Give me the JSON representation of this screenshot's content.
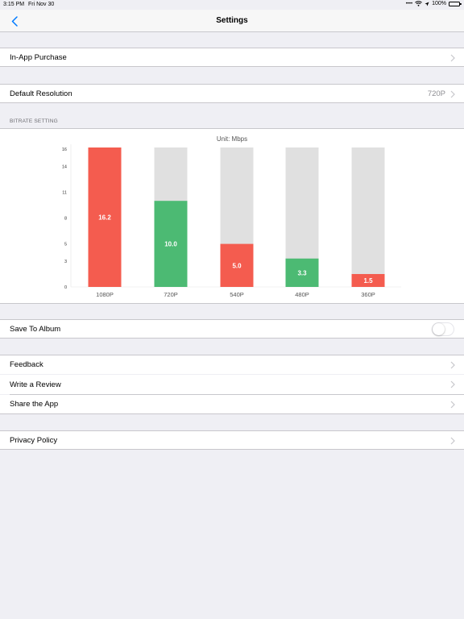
{
  "status_bar": {
    "time": "3:15 PM",
    "date": "Fri Nov 30",
    "battery": "100%"
  },
  "nav": {
    "title": "Settings",
    "back_icon": "chevron-left-icon"
  },
  "rows": {
    "in_app_purchase": "In-App Purchase",
    "default_resolution": "Default Resolution",
    "default_resolution_value": "720P",
    "save_to_album": "Save To Album",
    "save_to_album_on": false,
    "feedback": "Feedback",
    "write_review": "Write a Review",
    "share_app": "Share the App",
    "privacy_policy": "Privacy Policy"
  },
  "bitrate_header": "BITRATE SETTING",
  "colors": {
    "accent": "#007aff",
    "bar_red": "#f45c4f",
    "bar_green": "#4cba73",
    "bar_track": "#e0e0e0"
  },
  "chart_data": {
    "type": "bar",
    "title": "Unit: Mbps",
    "categories": [
      "1080P",
      "720P",
      "540P",
      "480P",
      "360P"
    ],
    "values": [
      16.2,
      10.0,
      5.0,
      3.3,
      1.5
    ],
    "value_labels": [
      "16.2",
      "10.0",
      "5.0",
      "3.3",
      "1.5"
    ],
    "bar_colors": [
      "#f45c4f",
      "#4cba73",
      "#f45c4f",
      "#4cba73",
      "#f45c4f"
    ],
    "y_ticks": [
      0,
      3,
      5,
      8,
      11,
      14,
      16
    ],
    "ylim": [
      0,
      16.2
    ],
    "grid": false,
    "legend": "none"
  }
}
